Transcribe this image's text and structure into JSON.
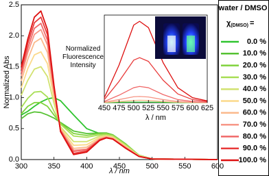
{
  "chart_data": [
    {
      "type": "line",
      "ylabel": "Normalized Abs",
      "xlabel": "λ / nm",
      "xlim": [
        300,
        600
      ],
      "xticks": [
        300,
        350,
        400,
        450,
        500,
        550,
        600
      ],
      "ylim": [
        0,
        2.5
      ],
      "yticks": [
        {
          "value": 0,
          "label": "0.0"
        },
        0.5,
        {
          "value": 1,
          "label": "1.0"
        },
        1.5,
        {
          "value": 2,
          "label": "2.0"
        },
        2.5
      ],
      "legend_title": "water / DMSO",
      "legend_subtitle": {
        "symbol": "χ",
        "subscript": "(DMSO)",
        "suffix": "="
      },
      "legend_position": "right",
      "x": [
        300,
        310,
        320,
        330,
        340,
        350,
        360,
        380,
        400,
        420,
        430,
        440,
        460,
        480,
        500,
        600
      ],
      "series": [
        {
          "name": "0.0 %",
          "color": "#2fc42f",
          "values": [
            0.72,
            0.78,
            0.86,
            0.93,
            0.98,
            1.0,
            0.95,
            0.72,
            0.5,
            0.42,
            0.4,
            0.36,
            0.22,
            0.06,
            0.01,
            0
          ]
        },
        {
          "name": "10.0 %",
          "color": "#55c232",
          "values": [
            0.66,
            0.74,
            0.77,
            0.76,
            0.72,
            0.67,
            0.6,
            0.46,
            0.42,
            0.43,
            0.43,
            0.4,
            0.25,
            0.07,
            0.01,
            0
          ]
        },
        {
          "name": "20.0 %",
          "color": "#7fd23c",
          "values": [
            0.74,
            0.86,
            0.92,
            0.92,
            0.86,
            0.72,
            0.59,
            0.42,
            0.39,
            0.42,
            0.42,
            0.39,
            0.24,
            0.07,
            0.01,
            0
          ]
        },
        {
          "name": "30.0 %",
          "color": "#a8de55",
          "values": [
            0.84,
            0.99,
            1.09,
            1.1,
            1.01,
            0.78,
            0.57,
            0.38,
            0.36,
            0.4,
            0.41,
            0.39,
            0.24,
            0.07,
            0.01,
            0
          ]
        },
        {
          "name": "40.0 %",
          "color": "#d2e270",
          "values": [
            1.04,
            1.28,
            1.46,
            1.5,
            1.34,
            0.91,
            0.53,
            0.29,
            0.29,
            0.38,
            0.39,
            0.37,
            0.22,
            0.06,
            0.01,
            0
          ]
        },
        {
          "name": "50.0 %",
          "color": "#fbd98a",
          "values": [
            1.16,
            1.47,
            1.69,
            1.74,
            1.55,
            0.99,
            0.51,
            0.23,
            0.24,
            0.36,
            0.38,
            0.36,
            0.21,
            0.06,
            0.01,
            0
          ]
        },
        {
          "name": "60.0 %",
          "color": "#fbb98c",
          "values": [
            1.27,
            1.62,
            1.89,
            1.96,
            1.73,
            1.06,
            0.49,
            0.18,
            0.2,
            0.34,
            0.37,
            0.35,
            0.2,
            0.06,
            0.01,
            0
          ]
        },
        {
          "name": "70.0 %",
          "color": "#f79585",
          "values": [
            1.35,
            1.73,
            2.02,
            2.1,
            1.85,
            1.1,
            0.48,
            0.15,
            0.17,
            0.33,
            0.36,
            0.34,
            0.19,
            0.05,
            0.01,
            0
          ]
        },
        {
          "name": "80.0 %",
          "color": "#f06868",
          "values": [
            1.4,
            1.8,
            2.12,
            2.2,
            1.93,
            1.14,
            0.47,
            0.13,
            0.16,
            0.32,
            0.36,
            0.33,
            0.19,
            0.05,
            0.01,
            0
          ]
        },
        {
          "name": "90.0 %",
          "color": "#e83a3a",
          "values": [
            1.45,
            1.88,
            2.21,
            2.3,
            2.02,
            1.17,
            0.46,
            0.1,
            0.14,
            0.32,
            0.35,
            0.33,
            0.18,
            0.05,
            0.01,
            0
          ]
        },
        {
          "name": "100.0 %",
          "color": "#dd1010",
          "values": [
            1.5,
            1.95,
            2.3,
            2.4,
            2.1,
            1.2,
            0.45,
            0.08,
            0.12,
            0.31,
            0.35,
            0.33,
            0.18,
            0.05,
            0.01,
            0
          ]
        }
      ]
    },
    {
      "type": "line",
      "ylabel": "Normalized Fluorescence Intensity",
      "xlabel": "λ / nm",
      "xlim": [
        450,
        625
      ],
      "xticks": [
        450,
        475,
        500,
        525,
        550,
        575,
        600,
        625
      ],
      "ylim": [
        0,
        700
      ],
      "x": [
        450,
        475,
        500,
        510,
        525,
        550,
        575,
        600,
        625
      ],
      "series": [
        {
          "color": "#2fc42f",
          "values": [
            1,
            3,
            5,
            5,
            5,
            3,
            1,
            1,
            0
          ]
        },
        {
          "color": "#fbb98c",
          "values": [
            2,
            10,
            18,
            20,
            18,
            10,
            4,
            2,
            1
          ]
        },
        {
          "color": "#f79585",
          "values": [
            5,
            25,
            48,
            50,
            46,
            25,
            10,
            4,
            2
          ]
        },
        {
          "color": "#f06868",
          "values": [
            10,
            60,
            120,
            130,
            120,
            65,
            25,
            10,
            4
          ]
        },
        {
          "color": "#e83a3a",
          "values": [
            25,
            170,
            340,
            360,
            330,
            180,
            70,
            25,
            10
          ]
        },
        {
          "color": "#dd1010",
          "values": [
            40,
            300,
            620,
            650,
            600,
            320,
            120,
            40,
            15
          ]
        }
      ]
    }
  ]
}
